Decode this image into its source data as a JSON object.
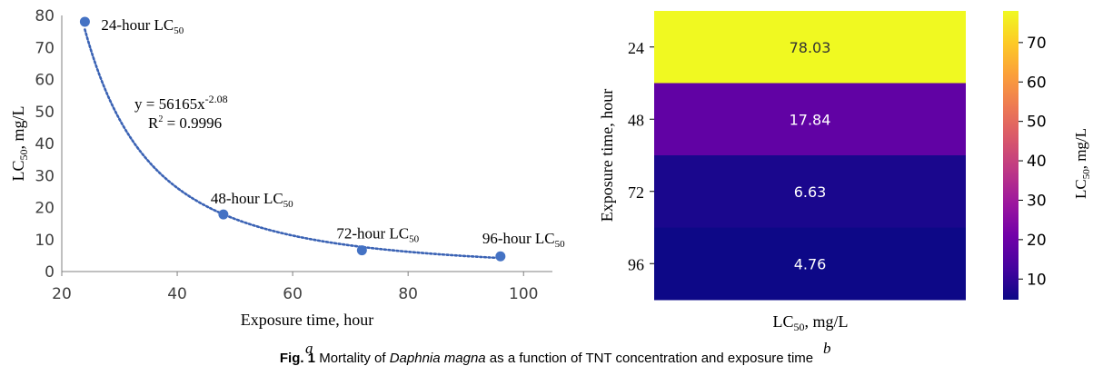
{
  "figure": {
    "caption_label": "Fig. 1",
    "caption_text_1": " Mortality of ",
    "caption_species": "Daphnia magna",
    "caption_text_2": " as a function of TNT concentration and exposure time",
    "panel_a": "a",
    "panel_b": "b"
  },
  "chart_data": [
    {
      "type": "scatter",
      "panel": "a",
      "x": [
        24,
        48,
        72,
        96
      ],
      "y": [
        78.03,
        17.84,
        6.63,
        4.76
      ],
      "point_labels": [
        {
          "base": "24-hour LC",
          "sub": "50"
        },
        {
          "base": "48-hour LC",
          "sub": "50"
        },
        {
          "base": "72-hour LC",
          "sub": "50"
        },
        {
          "base": "96-hour LC",
          "sub": "50"
        }
      ],
      "trendline": {
        "type": "power",
        "coefficient": 56165,
        "exponent": -2.08,
        "equation_base": "y = 56165x",
        "equation_exp": "-2.08",
        "r2_base": "R",
        "r2_sup": "2",
        "r2_value": " = 0.9996"
      },
      "xlabel": "Exposure time, hour",
      "ylabel_base": "LC",
      "ylabel_sub": "50",
      "ylabel_tail": ", mg/L",
      "xlim": [
        20,
        105
      ],
      "ylim": [
        0,
        80
      ],
      "xticks": [
        20,
        40,
        60,
        80,
        100
      ],
      "yticks": [
        0,
        10,
        20,
        30,
        40,
        50,
        60,
        70,
        80
      ],
      "marker_color": "#4472c4",
      "trend_color": "#3a62b4"
    },
    {
      "type": "heatmap",
      "panel": "b",
      "rows": [
        "24",
        "48",
        "72",
        "96"
      ],
      "values": [
        78.03,
        17.84,
        6.63,
        4.76
      ],
      "value_labels": [
        "78.03",
        "17.84",
        "6.63",
        "4.76"
      ],
      "ylabel": "Exposure time, hour",
      "xlabel_base": "LC",
      "xlabel_sub": "50",
      "xlabel_tail": ", mg/L",
      "colorbar_label_base": "LC",
      "colorbar_label_sub": "50",
      "colorbar_label_tail": ", mg/L",
      "colorbar_ticks": [
        10,
        20,
        30,
        40,
        50,
        60,
        70
      ],
      "colorbar_range": [
        4.76,
        78.03
      ],
      "colormap": "plasma",
      "colormap_stops": [
        "#0d0887",
        "#46039f",
        "#7201a8",
        "#9c179e",
        "#bd3786",
        "#d8576b",
        "#ed7953",
        "#fb9f3a",
        "#fdca26",
        "#f0f921"
      ]
    }
  ]
}
